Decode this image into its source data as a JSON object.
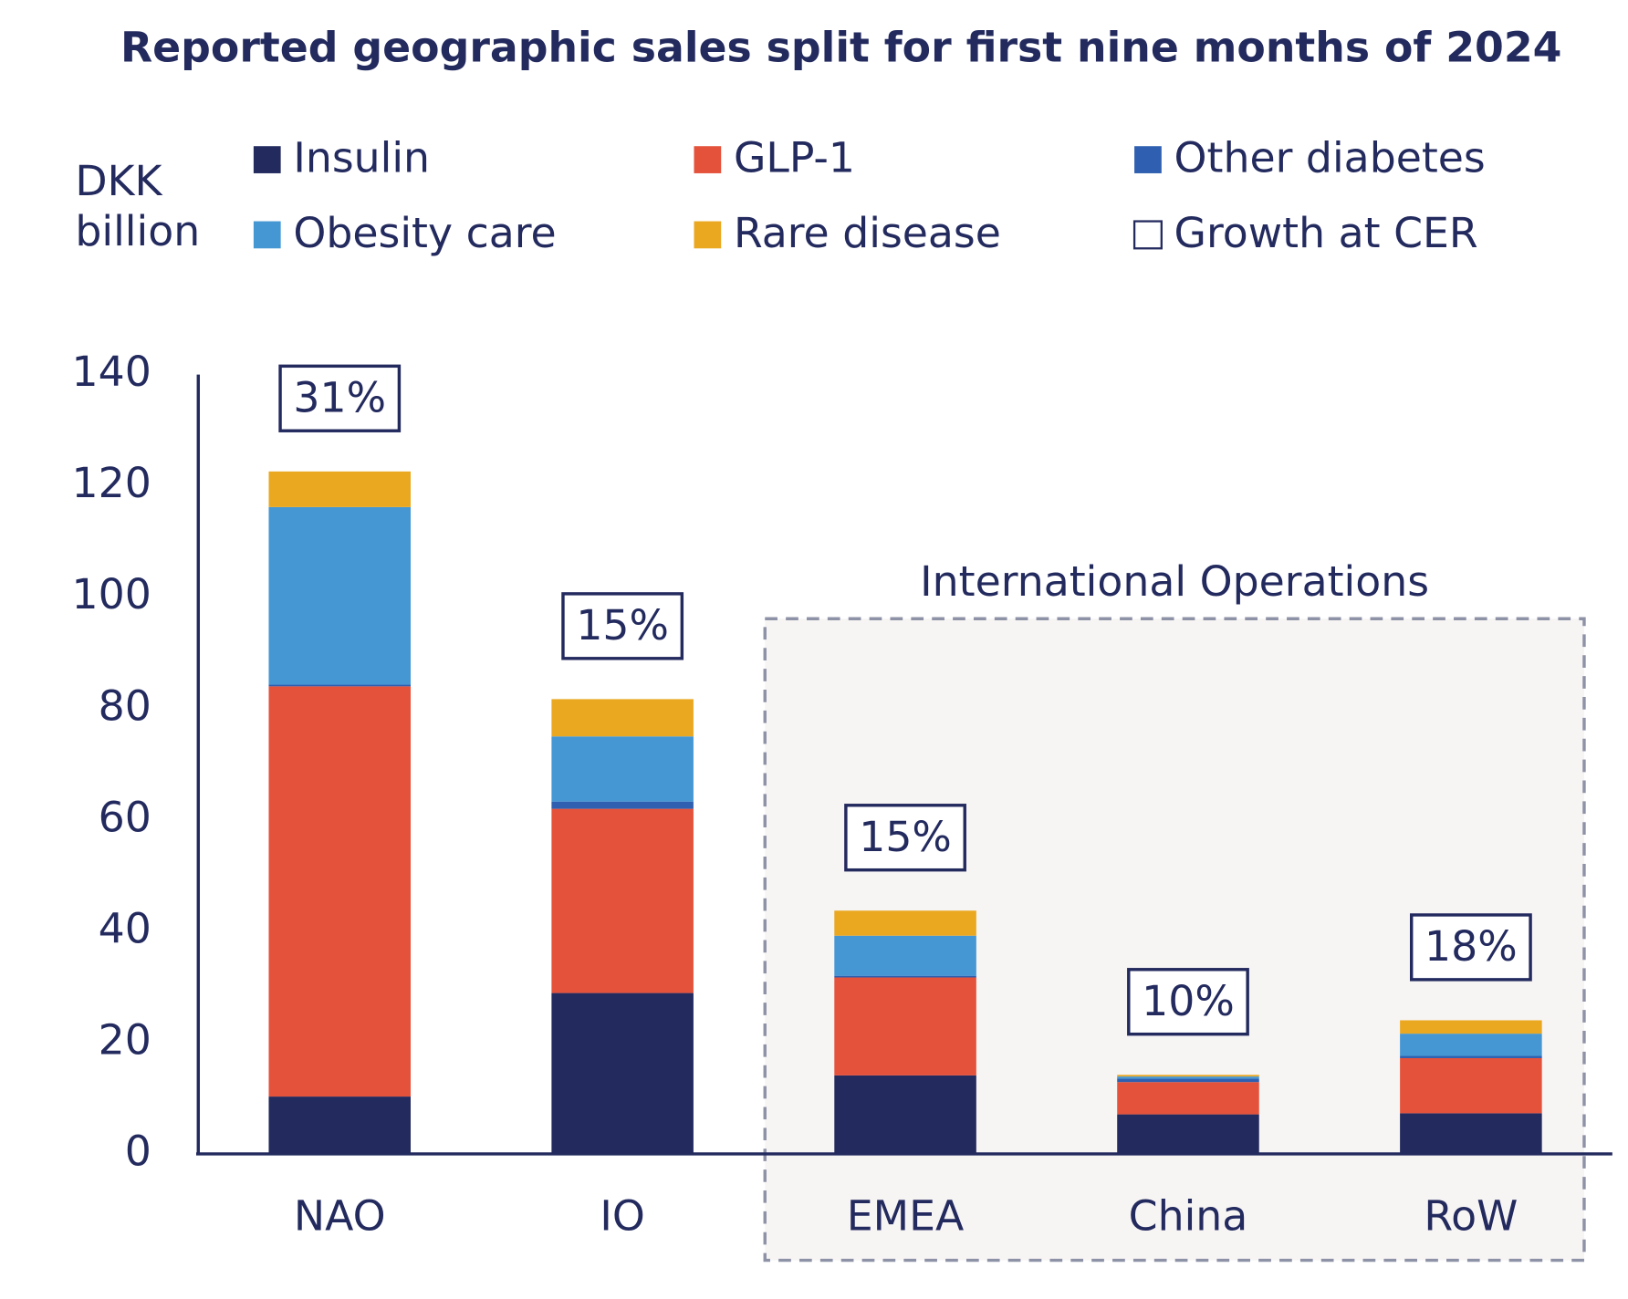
{
  "chart_data": {
    "type": "stacked_bar",
    "title": "Reported geographic sales split for first nine months of 2024",
    "y_label": "DKK billion",
    "group_label": "International Operations",
    "categories": [
      "NAO",
      "IO",
      "EMEA",
      "China",
      "RoW"
    ],
    "ylim": [
      0,
      140
    ],
    "yticks": [
      0,
      20,
      40,
      60,
      80,
      100,
      120,
      140
    ],
    "series": [
      {
        "name": "Insulin",
        "color": "#232a5e",
        "values": [
          10.3,
          28.9,
          14.1,
          7.1,
          7.3
        ]
      },
      {
        "name": "GLP-1",
        "color": "#e4523b",
        "values": [
          73.7,
          33.1,
          17.6,
          5.8,
          9.9
        ]
      },
      {
        "name": "Other diabetes",
        "color": "#2e5fb0",
        "values": [
          0.3,
          1.3,
          0.3,
          0.6,
          0.4
        ]
      },
      {
        "name": "Obesity care",
        "color": "#4597d4",
        "values": [
          31.9,
          11.7,
          7.2,
          0.4,
          4.0
        ]
      },
      {
        "name": "Rare disease",
        "color": "#eaa821",
        "values": [
          6.4,
          6.7,
          4.5,
          0.3,
          2.4
        ]
      },
      {
        "name": "Growth at CER",
        "color": "#ffffff",
        "type": "label",
        "values": [
          31,
          15,
          15,
          10,
          18
        ],
        "value_labels": [
          "31%",
          "15%",
          "15%",
          "10%",
          "18%"
        ]
      }
    ]
  }
}
